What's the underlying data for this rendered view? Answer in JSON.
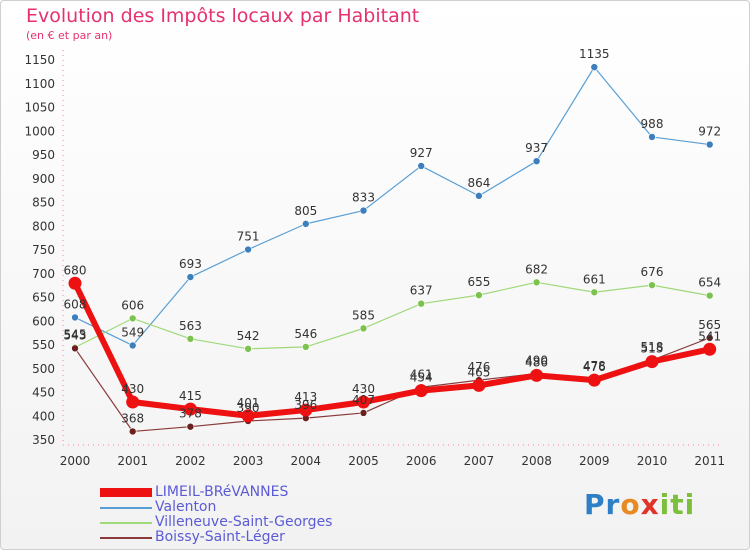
{
  "title": "Evolution des Impôts locaux par Habitant",
  "subtitle": "(en € et par an)",
  "logo": {
    "p": "Pr",
    "o": "o",
    "x": "x",
    "i": "iti"
  },
  "chart_data": {
    "type": "line",
    "x": [
      "2000",
      "2001",
      "2002",
      "2003",
      "2004",
      "2005",
      "2006",
      "2007",
      "2008",
      "2009",
      "2010",
      "2011"
    ],
    "yticks": [
      350,
      400,
      450,
      500,
      550,
      600,
      650,
      700,
      750,
      800,
      850,
      900,
      950,
      1000,
      1050,
      1100,
      1150
    ],
    "ylim": [
      350,
      1150
    ],
    "grid": false,
    "legend_position": "bottom-left",
    "series": [
      {
        "name": "Valenton",
        "color": "#5a9fd4",
        "marker": "#3d7fbd",
        "width": 1.2,
        "radius": 3.5,
        "values": [
          608,
          549,
          693,
          751,
          805,
          833,
          927,
          864,
          937,
          1135,
          988,
          972
        ],
        "labels": [
          "608",
          "549",
          "693",
          "751",
          "805",
          "833",
          "927",
          "864",
          "937",
          "1135",
          "988",
          "972"
        ]
      },
      {
        "name": "Villeneuve-Saint-Georges",
        "color": "#9fd97a",
        "marker": "#7cc24e",
        "width": 1.2,
        "radius": 3.5,
        "values": [
          545,
          606,
          563,
          542,
          546,
          585,
          637,
          655,
          682,
          661,
          676,
          654
        ],
        "labels": [
          "545",
          "606",
          "563",
          "542",
          "546",
          "585",
          "637",
          "655",
          "682",
          "661",
          "676",
          "654"
        ]
      },
      {
        "name": "Boissy-Saint-Léger",
        "color": "#8a3a3a",
        "marker": "#6b1f1f",
        "width": 1.2,
        "radius": 3.5,
        "values": [
          543,
          368,
          378,
          390,
          396,
          407,
          461,
          476,
          490,
          478,
          518,
          565
        ],
        "labels": [
          "543",
          "368",
          "378",
          "390",
          "396",
          "407",
          "461",
          "476",
          "490",
          "478",
          "518",
          "565"
        ]
      },
      {
        "name": "LIMEIL-BRéVANNES",
        "color": "#ee1111",
        "marker": "#ee1111",
        "width": 6,
        "radius": 6.5,
        "values": [
          680,
          430,
          415,
          401,
          413,
          430,
          454,
          465,
          486,
          476,
          515,
          541
        ],
        "labels": [
          "680",
          "430",
          "415",
          "401",
          "413",
          "430",
          "454",
          "465",
          "486",
          "476",
          "515",
          "541"
        ]
      }
    ],
    "legend_order": [
      3,
      0,
      1,
      2
    ]
  }
}
